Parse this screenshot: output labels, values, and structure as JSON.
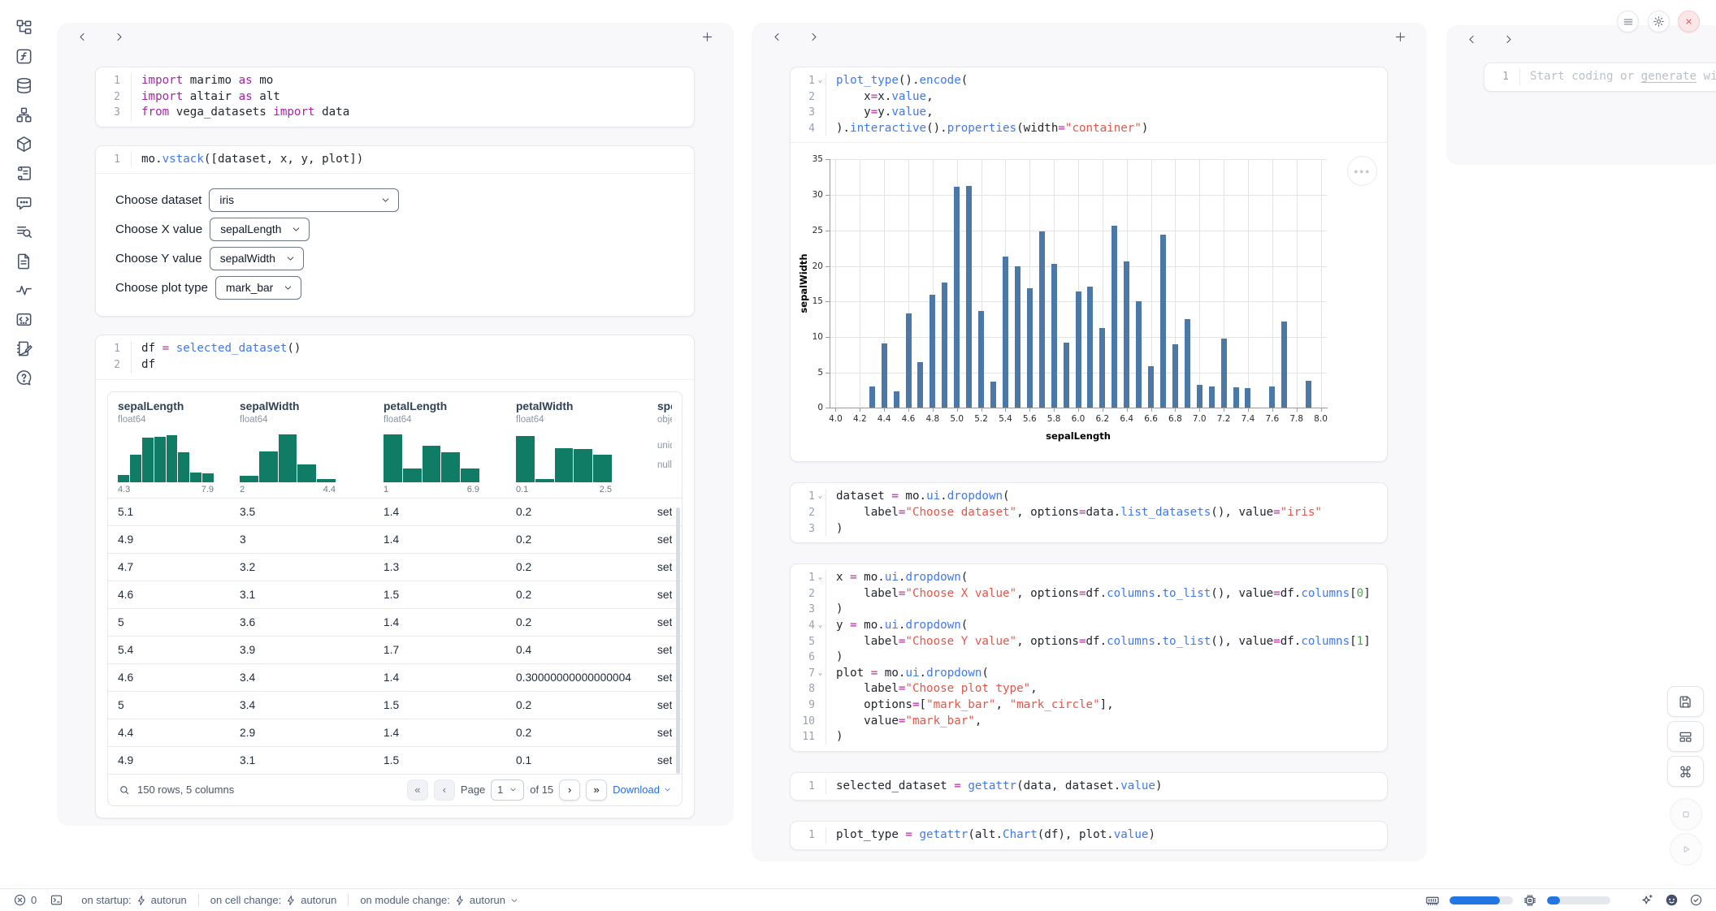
{
  "sidebar": {
    "icons": [
      "file-tree-icon",
      "function-icon",
      "database-icon",
      "dependency-graph-icon",
      "package-icon",
      "script-icon",
      "chatbot-icon",
      "logs-icon",
      "document-icon",
      "activity-icon",
      "snippet-icon",
      "scratchpad-icon",
      "help-icon"
    ]
  },
  "col1": {
    "cellA": {
      "lines": [
        {
          "n": "1",
          "tokens": [
            [
              "k",
              "import"
            ],
            [
              "p",
              " marimo "
            ],
            [
              "k",
              "as"
            ],
            [
              "p",
              " mo"
            ]
          ]
        },
        {
          "n": "2",
          "tokens": [
            [
              "k",
              "import"
            ],
            [
              "p",
              " altair "
            ],
            [
              "k",
              "as"
            ],
            [
              "p",
              " alt"
            ]
          ]
        },
        {
          "n": "3",
          "tokens": [
            [
              "k",
              "from"
            ],
            [
              "p",
              " vega_datasets "
            ],
            [
              "k",
              "import"
            ],
            [
              "p",
              " data"
            ]
          ]
        }
      ]
    },
    "cellB": {
      "lines": [
        {
          "n": "1",
          "tokens": [
            [
              "p",
              "mo."
            ],
            [
              "f",
              "vstack"
            ],
            [
              "p",
              "([dataset, x, y, plot])"
            ]
          ]
        }
      ]
    },
    "ui_rows": [
      {
        "label": "Choose dataset",
        "value": "iris"
      },
      {
        "label": "Choose X value",
        "value": "sepalLength"
      },
      {
        "label": "Choose Y value",
        "value": "sepalWidth"
      },
      {
        "label": "Choose plot type",
        "value": "mark_bar"
      }
    ],
    "cellC": {
      "lines": [
        {
          "n": "1",
          "tokens": [
            [
              "p",
              "df "
            ],
            [
              "o",
              "="
            ],
            [
              "p",
              " "
            ],
            [
              "f",
              "selected_dataset"
            ],
            [
              "p",
              "()"
            ]
          ]
        },
        {
          "n": "2",
          "tokens": [
            [
              "p",
              "df"
            ]
          ]
        }
      ]
    },
    "table": {
      "columns": [
        {
          "name": "sepalLength",
          "type": "float64",
          "min": "4.3",
          "max": "7.9",
          "hist": [
            0.14,
            0.55,
            0.88,
            0.9,
            0.93,
            0.6,
            0.2,
            0.18
          ]
        },
        {
          "name": "sepalWidth",
          "type": "float64",
          "min": "2",
          "max": "4.4",
          "hist": [
            0.13,
            0.62,
            0.95,
            0.35,
            0.07
          ]
        },
        {
          "name": "petalLength",
          "type": "float64",
          "min": "1",
          "max": "6.9",
          "hist": [
            0.95,
            0.27,
            0.73,
            0.6,
            0.28
          ]
        },
        {
          "name": "petalWidth",
          "type": "float64",
          "min": "0.1",
          "max": "2.5",
          "hist": [
            0.92,
            0.06,
            0.68,
            0.66,
            0.55
          ]
        },
        {
          "name": "species",
          "type": "object",
          "meta": [
            "unique:",
            "nulls:"
          ]
        }
      ],
      "rows": [
        [
          "5.1",
          "3.5",
          "1.4",
          "0.2",
          "setosa"
        ],
        [
          "4.9",
          "3",
          "1.4",
          "0.2",
          "setosa"
        ],
        [
          "4.7",
          "3.2",
          "1.3",
          "0.2",
          "setosa"
        ],
        [
          "4.6",
          "3.1",
          "1.5",
          "0.2",
          "setosa"
        ],
        [
          "5",
          "3.6",
          "1.4",
          "0.2",
          "setosa"
        ],
        [
          "5.4",
          "3.9",
          "1.7",
          "0.4",
          "setosa"
        ],
        [
          "4.6",
          "3.4",
          "1.4",
          "0.30000000000000004",
          "setosa"
        ],
        [
          "5",
          "3.4",
          "1.5",
          "0.2",
          "setosa"
        ],
        [
          "4.4",
          "2.9",
          "1.4",
          "0.2",
          "setosa"
        ],
        [
          "4.9",
          "3.1",
          "1.5",
          "0.1",
          "setosa"
        ]
      ],
      "footer": {
        "summary": "150 rows, 5 columns",
        "page_label": "Page",
        "page_value": "1",
        "pages_label": "of 15",
        "download_label": "Download"
      }
    }
  },
  "col2": {
    "cellD": {
      "lines": [
        {
          "n": "1",
          "fold": true,
          "tokens": [
            [
              "f",
              "plot_type"
            ],
            [
              "p",
              "()."
            ],
            [
              "f",
              "encode"
            ],
            [
              "p",
              "("
            ]
          ]
        },
        {
          "n": "2",
          "tokens": [
            [
              "p",
              "    x"
            ],
            [
              "o",
              "="
            ],
            [
              "p",
              "x."
            ],
            [
              "f",
              "value"
            ],
            [
              "p",
              ","
            ]
          ]
        },
        {
          "n": "3",
          "tokens": [
            [
              "p",
              "    y"
            ],
            [
              "o",
              "="
            ],
            [
              "p",
              "y."
            ],
            [
              "f",
              "value"
            ],
            [
              "p",
              ","
            ]
          ]
        },
        {
          "n": "4",
          "tokens": [
            [
              "p",
              ")."
            ],
            [
              "f",
              "interactive"
            ],
            [
              "p",
              "()."
            ],
            [
              "f",
              "properties"
            ],
            [
              "p",
              "(width"
            ],
            [
              "o",
              "="
            ],
            [
              "s",
              "\"container\""
            ],
            [
              "p",
              ")"
            ]
          ]
        }
      ]
    },
    "cellE": {
      "lines": [
        {
          "n": "1",
          "fold": true,
          "tokens": [
            [
              "p",
              "dataset "
            ],
            [
              "o",
              "="
            ],
            [
              "p",
              " mo."
            ],
            [
              "f",
              "ui"
            ],
            [
              "p",
              "."
            ],
            [
              "f",
              "dropdown"
            ],
            [
              "p",
              "("
            ]
          ]
        },
        {
          "n": "2",
          "tokens": [
            [
              "p",
              "    label"
            ],
            [
              "o",
              "="
            ],
            [
              "s",
              "\"Choose dataset\""
            ],
            [
              "p",
              ", options"
            ],
            [
              "o",
              "="
            ],
            [
              "p",
              "data."
            ],
            [
              "f",
              "list_datasets"
            ],
            [
              "p",
              "(), value"
            ],
            [
              "o",
              "="
            ],
            [
              "s",
              "\"iris\""
            ]
          ]
        },
        {
          "n": "3",
          "tokens": [
            [
              "p",
              ")"
            ]
          ]
        }
      ]
    },
    "cellF": {
      "lines": [
        {
          "n": "1",
          "fold": true,
          "tokens": [
            [
              "p",
              "x "
            ],
            [
              "o",
              "="
            ],
            [
              "p",
              " mo."
            ],
            [
              "f",
              "ui"
            ],
            [
              "p",
              "."
            ],
            [
              "f",
              "dropdown"
            ],
            [
              "p",
              "("
            ]
          ]
        },
        {
          "n": "2",
          "tokens": [
            [
              "p",
              "    label"
            ],
            [
              "o",
              "="
            ],
            [
              "s",
              "\"Choose X value\""
            ],
            [
              "p",
              ", options"
            ],
            [
              "o",
              "="
            ],
            [
              "p",
              "df."
            ],
            [
              "f",
              "columns"
            ],
            [
              "p",
              "."
            ],
            [
              "f",
              "to_list"
            ],
            [
              "p",
              "(), value"
            ],
            [
              "o",
              "="
            ],
            [
              "p",
              "df."
            ],
            [
              "f",
              "columns"
            ],
            [
              "p",
              "["
            ],
            [
              "n",
              "0"
            ],
            [
              "p",
              "]"
            ]
          ]
        },
        {
          "n": "3",
          "tokens": [
            [
              "p",
              ")"
            ]
          ]
        },
        {
          "n": "4",
          "fold": true,
          "tokens": [
            [
              "p",
              "y "
            ],
            [
              "o",
              "="
            ],
            [
              "p",
              " mo."
            ],
            [
              "f",
              "ui"
            ],
            [
              "p",
              "."
            ],
            [
              "f",
              "dropdown"
            ],
            [
              "p",
              "("
            ]
          ]
        },
        {
          "n": "5",
          "tokens": [
            [
              "p",
              "    label"
            ],
            [
              "o",
              "="
            ],
            [
              "s",
              "\"Choose Y value\""
            ],
            [
              "p",
              ", options"
            ],
            [
              "o",
              "="
            ],
            [
              "p",
              "df."
            ],
            [
              "f",
              "columns"
            ],
            [
              "p",
              "."
            ],
            [
              "f",
              "to_list"
            ],
            [
              "p",
              "(), value"
            ],
            [
              "o",
              "="
            ],
            [
              "p",
              "df."
            ],
            [
              "f",
              "columns"
            ],
            [
              "p",
              "["
            ],
            [
              "n",
              "1"
            ],
            [
              "p",
              "]"
            ]
          ]
        },
        {
          "n": "6",
          "tokens": [
            [
              "p",
              ")"
            ]
          ]
        },
        {
          "n": "7",
          "fold": true,
          "tokens": [
            [
              "p",
              "plot "
            ],
            [
              "o",
              "="
            ],
            [
              "p",
              " mo."
            ],
            [
              "f",
              "ui"
            ],
            [
              "p",
              "."
            ],
            [
              "f",
              "dropdown"
            ],
            [
              "p",
              "("
            ]
          ]
        },
        {
          "n": "8",
          "tokens": [
            [
              "p",
              "    label"
            ],
            [
              "o",
              "="
            ],
            [
              "s",
              "\"Choose plot type\""
            ],
            [
              "p",
              ","
            ]
          ]
        },
        {
          "n": "9",
          "tokens": [
            [
              "p",
              "    options"
            ],
            [
              "o",
              "="
            ],
            [
              "p",
              "["
            ],
            [
              "s",
              "\"mark_bar\""
            ],
            [
              "p",
              ", "
            ],
            [
              "s",
              "\"mark_circle\""
            ],
            [
              "p",
              "],"
            ]
          ]
        },
        {
          "n": "10",
          "tokens": [
            [
              "p",
              "    value"
            ],
            [
              "o",
              "="
            ],
            [
              "s",
              "\"mark_bar\""
            ],
            [
              "p",
              ","
            ]
          ]
        },
        {
          "n": "11",
          "tokens": [
            [
              "p",
              ")"
            ]
          ]
        }
      ]
    },
    "cellG": {
      "lines": [
        {
          "n": "1",
          "tokens": [
            [
              "p",
              "selected_dataset "
            ],
            [
              "o",
              "="
            ],
            [
              "p",
              " "
            ],
            [
              "f",
              "getattr"
            ],
            [
              "p",
              "(data, dataset."
            ],
            [
              "f",
              "value"
            ],
            [
              "p",
              ")"
            ]
          ]
        }
      ]
    },
    "cellH": {
      "lines": [
        {
          "n": "1",
          "tokens": [
            [
              "p",
              "plot_type "
            ],
            [
              "o",
              "="
            ],
            [
              "p",
              " "
            ],
            [
              "f",
              "getattr"
            ],
            [
              "p",
              "(alt."
            ],
            [
              "f",
              "Chart"
            ],
            [
              "p",
              "(df), plot."
            ],
            [
              "f",
              "value"
            ],
            [
              "p",
              ")"
            ]
          ]
        }
      ]
    }
  },
  "col3": {
    "line_number": "1",
    "placeholder_prefix": "Start coding or ",
    "placeholder_link": "generate",
    "placeholder_suffix": " with"
  },
  "chart_data": {
    "type": "bar",
    "title": "",
    "xlabel": "sepalLength",
    "ylabel": "sepalWidth",
    "x": [
      4.3,
      4.4,
      4.5,
      4.6,
      4.7,
      4.8,
      4.9,
      5.0,
      5.1,
      5.2,
      5.3,
      5.4,
      5.5,
      5.6,
      5.7,
      5.8,
      5.9,
      6.0,
      6.1,
      6.2,
      6.3,
      6.4,
      6.5,
      6.6,
      6.7,
      6.8,
      6.9,
      7.0,
      7.1,
      7.2,
      7.3,
      7.4,
      7.6,
      7.7,
      7.9
    ],
    "values": [
      3.0,
      9.1,
      2.3,
      13.3,
      6.4,
      15.9,
      17.7,
      31.2,
      31.3,
      13.7,
      3.7,
      21.3,
      19.9,
      16.9,
      24.9,
      20.3,
      9.2,
      16.4,
      17.1,
      11.3,
      25.7,
      20.6,
      15.0,
      5.9,
      24.4,
      9.0,
      12.5,
      3.2,
      3.0,
      9.8,
      2.9,
      2.8,
      3.0,
      12.2,
      3.8
    ],
    "xlim": [
      3.95,
      8.05
    ],
    "ylim": [
      0,
      35
    ],
    "x_ticks": [
      4.0,
      4.2,
      4.4,
      4.6,
      4.8,
      5.0,
      5.2,
      5.4,
      5.6,
      5.8,
      6.0,
      6.2,
      6.4,
      6.6,
      6.8,
      7.0,
      7.2,
      7.4,
      7.6,
      7.8,
      8.0
    ],
    "y_ticks": [
      0,
      5,
      10,
      15,
      20,
      25,
      30,
      35
    ],
    "grid": true,
    "legend": null,
    "bar_color": "#4c78a8"
  },
  "window_controls": {
    "menu": "menu-icon",
    "settings": "gear-icon",
    "close": "close-icon"
  },
  "statusbar": {
    "error_count": "0",
    "items": [
      {
        "label": "on startup:",
        "value": "autorun"
      },
      {
        "label": "on cell change:",
        "value": "autorun"
      },
      {
        "label": "on module change:",
        "value": "autorun"
      }
    ],
    "ram_percent": 80,
    "cpu_percent": 21
  },
  "theme": {
    "accent_blue": "#2470e8",
    "bar_color": "#4c78a8",
    "hist_color": "#107c66",
    "progress_blue": "#2276e4",
    "close_red": "#d64c4c"
  }
}
